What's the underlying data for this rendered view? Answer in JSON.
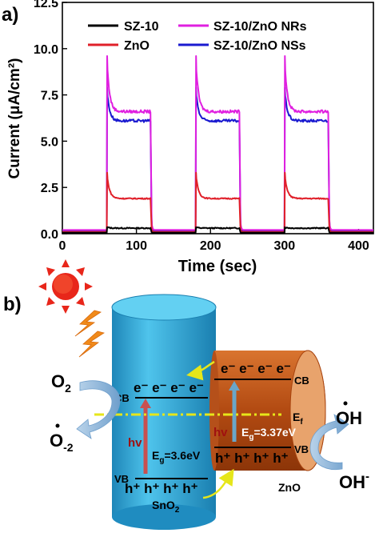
{
  "panel_a": {
    "label": "a)",
    "chart_data": {
      "type": "line",
      "xlabel": "Time (sec)",
      "ylabel": "Current (μA/cm²)",
      "xlim": [
        0,
        420
      ],
      "ylim": [
        0,
        12.5
      ],
      "xticks": [
        "0",
        "100",
        "200",
        "300",
        "400"
      ],
      "yticks": [
        "0.0",
        "2.5",
        "5.0",
        "7.5",
        "10.0",
        "12.5"
      ],
      "legend_placement": "top",
      "on_windows": [
        [
          60,
          120
        ],
        [
          180,
          240
        ],
        [
          300,
          360
        ]
      ],
      "series": [
        {
          "name": "SZ-10",
          "color": "#000000",
          "baseline": 0.05,
          "peak": 0.35,
          "plateau": 0.3
        },
        {
          "name": "ZnO",
          "color": "#e0202a",
          "baseline": 0.1,
          "peak": 3.3,
          "plateau": 1.9
        },
        {
          "name": "SZ-10/ZnO NRs",
          "color": "#e020e0",
          "baseline": 0.2,
          "peak": 9.6,
          "plateau": 6.6
        },
        {
          "name": "SZ-10/ZnO NSs",
          "color": "#1a1ad0",
          "baseline": 0.15,
          "peak": 7.9,
          "plateau": 6.1
        }
      ]
    }
  },
  "panel_b": {
    "label": "b)",
    "labels": {
      "o2": "O",
      "o2_sub": "2",
      "o2_rad": "O",
      "o2_rad_sub": "-2",
      "oh_rad": "OH",
      "oh_minus": "OH",
      "oh_minus_sup": "-",
      "sno2_cb": "CB",
      "sno2_vb": "VB",
      "sno2_eg": "E",
      "sno2_eg_sub": "g",
      "sno2_eg_val": "=3.6eV",
      "sno2_hv": "hv",
      "sno2_name": "SnO",
      "sno2_name_sub": "2",
      "zno_cb": "CB",
      "zno_vb": "VB",
      "zno_eg": "E",
      "zno_eg_sub": "g",
      "zno_eg_val": "=3.37eV",
      "zno_hv": "hv",
      "zno_name": "ZnO",
      "ef": "E",
      "ef_sub": "f",
      "electrons": "e⁻ e⁻ e⁻ e⁻",
      "holes": "h⁺ h⁺ h⁺ h⁺"
    },
    "colors": {
      "sno2": "#2aa6d6",
      "zno": "#c8561c",
      "sun": "#e8261a",
      "lightning": "#f08a1a",
      "fermi": "#e6e61a"
    }
  }
}
